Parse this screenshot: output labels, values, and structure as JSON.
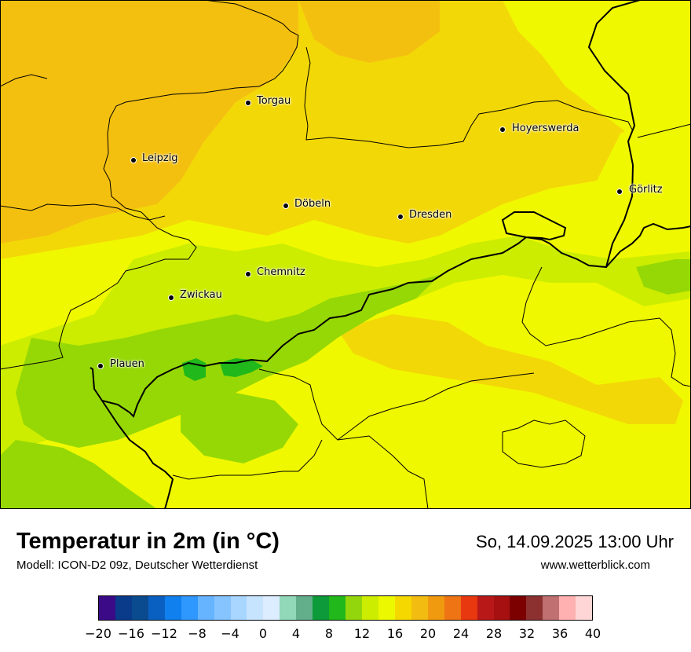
{
  "title": "Temperatur in 2m (in °C)",
  "subtitle": "Modell: ICON-D2 09z, Deutscher Wetterdienst",
  "datetime": "So, 14.09.2025 13:00 Uhr",
  "website": "www.wetterblick.com",
  "cities": [
    {
      "name": "Torgau"
    },
    {
      "name": "Hoyerswerda"
    },
    {
      "name": "Leipzig"
    },
    {
      "name": "Görlitz"
    },
    {
      "name": "Döbeln"
    },
    {
      "name": "Dresden"
    },
    {
      "name": "Chemnitz"
    },
    {
      "name": "Zwickau"
    },
    {
      "name": "Plauen"
    }
  ],
  "colorbar": {
    "colors": [
      "#3b0a87",
      "#0a3a8a",
      "#0a4a8f",
      "#0a60c0",
      "#1080ee",
      "#2e98ff",
      "#66b4ff",
      "#86c4ff",
      "#a8d6ff",
      "#c7e4ff",
      "#dcedff",
      "#90d8b8",
      "#62ae8a",
      "#0c9a3a",
      "#20b81a",
      "#94d60c",
      "#ccec00",
      "#ecf800",
      "#f5d800",
      "#f2bc10",
      "#f09a10",
      "#ee7414",
      "#e83810",
      "#b81818",
      "#a61010",
      "#7c0000",
      "#8c3030",
      "#c07070",
      "#ffb0b0",
      "#ffd6d6"
    ],
    "tick_labels": [
      "−20",
      "−16",
      "−12",
      "−8",
      "−4",
      "0",
      "4",
      "8",
      "12",
      "16",
      "20",
      "24",
      "28",
      "32",
      "36",
      "40"
    ],
    "min": -20,
    "max": 40
  },
  "map_colors": {
    "warm_orange": "#f4c010",
    "orange_yellow": "#f3d808",
    "yellow": "#f0f800",
    "yellow_green": "#cced00",
    "light_green": "#96d806",
    "green": "#20b81a"
  }
}
